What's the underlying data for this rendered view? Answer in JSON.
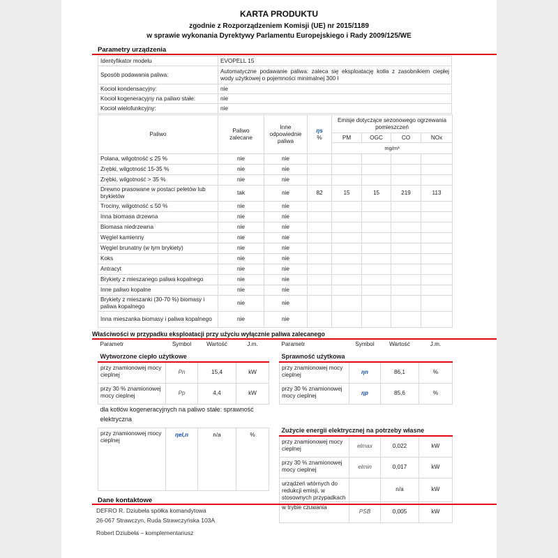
{
  "header": {
    "title": "KARTA PRODUKTU",
    "subtitle1": "zgodnie z Rozporządzeniem Komisji (UE) nr 2015/1189",
    "subtitle2": "w sprawie wykonania Dyrektywy Parlamentu Europejskiego i Rady 2009/125/WE"
  },
  "params": {
    "section": "Parametry urządzenia",
    "rows": [
      {
        "label": "Identyfikator modelu",
        "value": "EVOPELL 15"
      },
      {
        "label": "Sposób podawania paliwa:",
        "value": "Automatyczne podawanie paliwa: zaleca się eksploatację kotła z zasobnikiem ciepłej wody użytkowej o pojemności minimalnej 300 l"
      },
      {
        "label": "Kocioł kondensacyjny:",
        "value": "nie"
      },
      {
        "label": "Kocioł kogeneracyjny na paliwo stałe:",
        "value": "nie"
      },
      {
        "label": "Kocioł wielofunkcyjny:",
        "value": "nie"
      }
    ]
  },
  "fuel": {
    "headers": {
      "fuel": "Paliwo",
      "recommended": "Paliwo zalecane",
      "other": "Inne odpowiednie paliwa",
      "eta": "ηs",
      "eta_unit": "%",
      "emissions": "Emisje dotyczące sezonowego ogrzewania pomieszczeń",
      "pm": "PM",
      "ogc": "OGC",
      "co": "CO",
      "nox": "NOx",
      "unit": "mg/m³"
    },
    "rows": [
      {
        "name": "Polana, wilgotność ≤ 25 %",
        "rec": "nie",
        "other": "nie",
        "eta": "",
        "pm": "",
        "ogc": "",
        "co": "",
        "nox": ""
      },
      {
        "name": "Zrębki, wilgotność 15-35 %",
        "rec": "nie",
        "other": "nie",
        "eta": "",
        "pm": "",
        "ogc": "",
        "co": "",
        "nox": ""
      },
      {
        "name": "Zrębki, wilgotność > 35 %",
        "rec": "nie",
        "other": "nie",
        "eta": "",
        "pm": "",
        "ogc": "",
        "co": "",
        "nox": ""
      },
      {
        "name": "Drewno prasowane w postaci peletów lub brykietów",
        "rec": "tak",
        "other": "nie",
        "eta": "82",
        "pm": "15",
        "ogc": "15",
        "co": "219",
        "nox": "113"
      },
      {
        "name": "Trociny, wilgotność ≤ 50 %",
        "rec": "nie",
        "other": "nie",
        "eta": "",
        "pm": "",
        "ogc": "",
        "co": "",
        "nox": ""
      },
      {
        "name": "Inna biomasa drzewna",
        "rec": "nie",
        "other": "nie",
        "eta": "",
        "pm": "",
        "ogc": "",
        "co": "",
        "nox": ""
      },
      {
        "name": "Biomasa niedrzewna",
        "rec": "nie",
        "other": "nie",
        "eta": "",
        "pm": "",
        "ogc": "",
        "co": "",
        "nox": ""
      },
      {
        "name": "Węgiel kamienny",
        "rec": "nie",
        "other": "nie",
        "eta": "",
        "pm": "",
        "ogc": "",
        "co": "",
        "nox": ""
      },
      {
        "name": "Węgiel brunatny (w tym brykiety)",
        "rec": "nie",
        "other": "nie",
        "eta": "",
        "pm": "",
        "ogc": "",
        "co": "",
        "nox": ""
      },
      {
        "name": "Koks",
        "rec": "nie",
        "other": "nie",
        "eta": "",
        "pm": "",
        "ogc": "",
        "co": "",
        "nox": ""
      },
      {
        "name": "Antracyt",
        "rec": "nie",
        "other": "nie",
        "eta": "",
        "pm": "",
        "ogc": "",
        "co": "",
        "nox": ""
      },
      {
        "name": "Brykiety z mieszanego paliwa kopalnego",
        "rec": "nie",
        "other": "nie",
        "eta": "",
        "pm": "",
        "ogc": "",
        "co": "",
        "nox": ""
      },
      {
        "name": "Inne paliwo kopalne",
        "rec": "nie",
        "other": "nie",
        "eta": "",
        "pm": "",
        "ogc": "",
        "co": "",
        "nox": ""
      },
      {
        "name": "Brykiety z mieszanki (30-70 %) biomasy i paliwa kopalnego",
        "rec": "nie",
        "other": "nie",
        "eta": "",
        "pm": "",
        "ogc": "",
        "co": "",
        "nox": ""
      },
      {
        "name": "Inna mieszanka biomasy i paliwa kopalnego",
        "rec": "nie",
        "other": "nie",
        "eta": "",
        "pm": "",
        "ogc": "",
        "co": "",
        "nox": ""
      }
    ]
  },
  "props": {
    "section": "Właściwości w przypadku eksploatacji przy użyciu wyłącznie paliwa zalecanego",
    "col_param": "Parametr",
    "col_symbol": "Symbol",
    "col_value": "Wartość",
    "col_unit": "J.m.",
    "heat": {
      "title": "Wytworzone ciepło użytkowe",
      "rows": [
        {
          "label": "przy znamionowej mocy cieplnej",
          "symbol": "Pn",
          "value": "15,4",
          "unit": "kW"
        },
        {
          "label": "przy 30 % znamionowej mocy cieplnej",
          "symbol": "Pp",
          "value": "4,4",
          "unit": "kW"
        }
      ]
    },
    "cogen": {
      "title": "dla kotłów kogeneracyjnych na paliwo stałe: sprawność elektryczna",
      "rows": [
        {
          "label": "przy znamionowej mocy cieplnej",
          "symbol": "ηel,n",
          "value": "n/a",
          "unit": "%"
        }
      ]
    },
    "eff": {
      "title": "Sprawność użytkowa",
      "rows": [
        {
          "label": "przy znamionowej mocy cieplnej",
          "symbol": "ηn",
          "value": "86,1",
          "unit": "%"
        },
        {
          "label": "przy 30 % znamionowej mocy cieplnej",
          "symbol": "ηp",
          "value": "85,6",
          "unit": "%"
        }
      ]
    },
    "elec": {
      "title": "Zużycie energii elektrycznej na potrzeby własne",
      "rows": [
        {
          "label": "przy znamionowej mocy cieplnej",
          "symbol": "elmax",
          "value": "0,022",
          "unit": "kW"
        },
        {
          "label": "przy 30 % znamionowej mocy cieplnej",
          "symbol": "elmin",
          "value": "0,017",
          "unit": "kW"
        },
        {
          "label": "urządzeń wtórnych do redukcji emisji, w stosownych przypadkach",
          "symbol": "",
          "value": "n/a",
          "unit": "kW"
        },
        {
          "label": "w trybie czuwania",
          "symbol": "PSB",
          "value": "0,005",
          "unit": "kW"
        }
      ]
    }
  },
  "contact": {
    "section": "Dane kontaktowe",
    "line1": "DEFRO R. Dziubeła spółka komandytowa",
    "line2": "26-067 Strawczyn, Ruda Strawczyńska 103A",
    "line3": "Robert Dziubeła – komplementariusz"
  },
  "colors": {
    "accent": "#e30613"
  }
}
